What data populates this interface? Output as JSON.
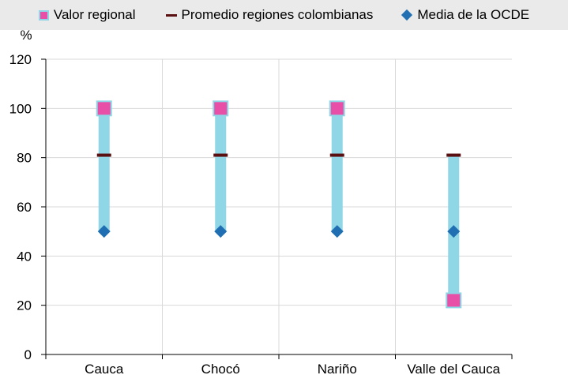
{
  "chart_data": {
    "type": "range",
    "ylabel": "%",
    "ylim": [
      0,
      120
    ],
    "yticks": [
      0,
      20,
      40,
      60,
      80,
      100,
      120
    ],
    "categories": [
      "Cauca",
      "Chocó",
      "Nariño",
      "Valle del Cauca"
    ],
    "series": [
      {
        "name": "Valor regional",
        "values": [
          100,
          100,
          100,
          22
        ]
      },
      {
        "name": "Promedio regiones colombianas",
        "values": [
          81,
          81,
          81,
          81
        ]
      },
      {
        "name": "Media de la OCDE",
        "values": [
          50,
          50,
          50,
          50
        ]
      }
    ],
    "grid": true,
    "legend_position": "top"
  },
  "colors": {
    "regional": "#e84fa7",
    "range_bar": "#8fd6e6",
    "national_avg": "#5a0f10",
    "oecd": "#1f6fb2",
    "grid": "#d9d9d9"
  }
}
